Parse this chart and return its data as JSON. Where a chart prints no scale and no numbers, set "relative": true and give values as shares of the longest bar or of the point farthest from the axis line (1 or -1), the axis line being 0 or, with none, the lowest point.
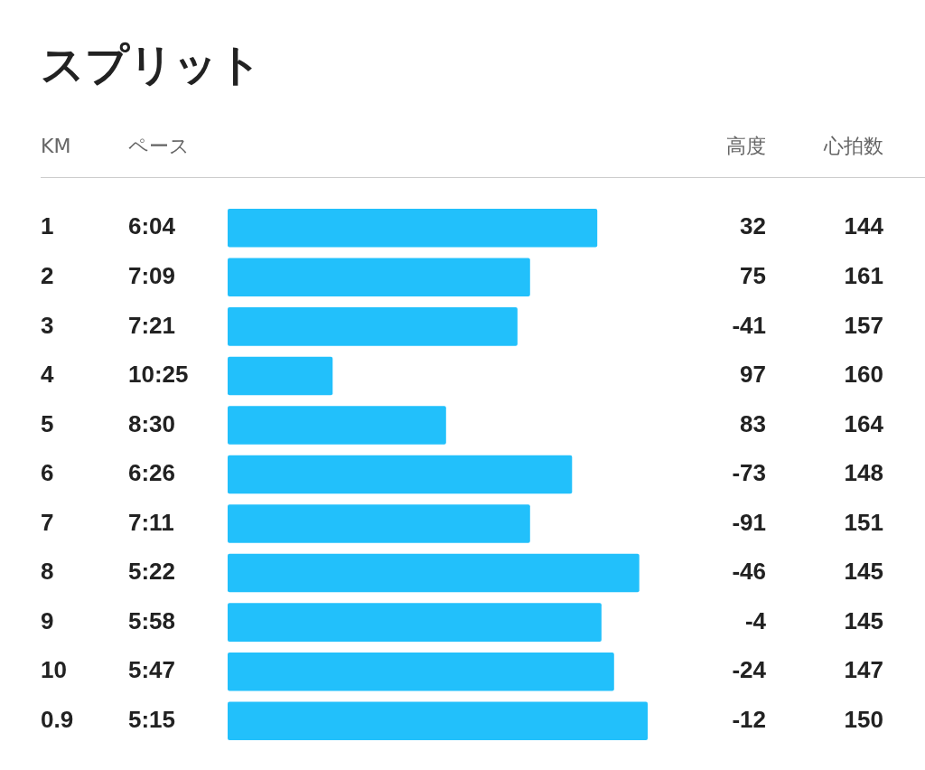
{
  "chart_data": {
    "type": "bar",
    "orientation": "horizontal",
    "relative": true,
    "title": "スプリット",
    "ylabel": "KM",
    "xlabel": "ペース",
    "categories": [
      "1",
      "2",
      "3",
      "4",
      "5",
      "6",
      "7",
      "8",
      "9",
      "10",
      "0.9"
    ],
    "values": [
      0.88,
      0.72,
      0.69,
      0.25,
      0.52,
      0.82,
      0.72,
      0.98,
      0.89,
      0.92,
      1
    ],
    "color": "#22c0fb",
    "annotations": [
      "高度",
      "心拍数",
      "6:04",
      "32",
      "144",
      "7:09",
      "75",
      "161",
      "7:21",
      "-41",
      "157",
      "10:25",
      "97",
      "160",
      "8:30",
      "83",
      "164",
      "6:26",
      "-73",
      "148",
      "7:11",
      "-91",
      "151",
      "5:22",
      "-46",
      "145",
      "5:58",
      "-4",
      "145",
      "5:47",
      "-24",
      "147",
      "5:15",
      "-12",
      "150"
    ]
  }
}
